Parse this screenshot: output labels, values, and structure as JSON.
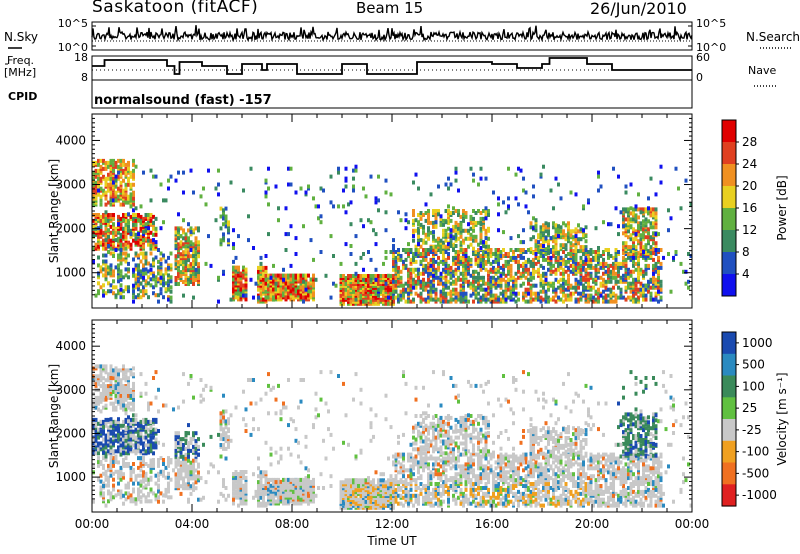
{
  "header": {
    "site": "Saskatoon (fitACF)",
    "beam": "Beam 15",
    "date": "26/Jun/2010"
  },
  "left_labels": {
    "nsky": "N.Sky",
    "freq": "Freq.",
    "freq_unit": "[MHz]",
    "cpid": "CPID"
  },
  "right_labels": {
    "nsearch": "N.Search",
    "nave": "Nave"
  },
  "cpid_text": "normalsound (fast) -157",
  "noise_panel": {
    "ticks_left": [
      "10^5",
      "10^0"
    ],
    "ticks_right": [
      "10^5",
      "10^0"
    ]
  },
  "freq_panel": {
    "ticks_left": [
      "18",
      "8"
    ],
    "ticks_right": [
      "60",
      "0"
    ]
  },
  "chart_data": [
    {
      "type": "heatmap",
      "name": "power",
      "ylabel": "Slant Range [km]",
      "xlabel": "Time UT",
      "ylim": [
        200,
        4600
      ],
      "yticks": [
        "1000",
        "2000",
        "3000",
        "4000"
      ],
      "xticks": [
        "00:00",
        "04:00",
        "08:00",
        "12:00",
        "16:00",
        "20:00",
        "00:00"
      ],
      "colorbar_label": "Power [dB]",
      "colorbar_ticks": [
        "4",
        "8",
        "12",
        "16",
        "20",
        "24",
        "28"
      ],
      "colors": [
        "#1010ee",
        "#2050c0",
        "#3a8a60",
        "#60b040",
        "#e8d020",
        "#f09020",
        "#e04020",
        "#e00000"
      ]
    },
    {
      "type": "heatmap",
      "name": "velocity",
      "ylabel": "Slant Range [km]",
      "xlabel": "Time UT",
      "ylim": [
        200,
        4600
      ],
      "yticks": [
        "1000",
        "2000",
        "3000",
        "4000"
      ],
      "xticks": [
        "00:00",
        "04:00",
        "08:00",
        "12:00",
        "16:00",
        "20:00",
        "00:00"
      ],
      "colorbar_label": "Velocity [m s⁻¹]",
      "colorbar_ticks": [
        "1000",
        "500",
        "100",
        "25",
        "-25",
        "-100",
        "-500",
        "-1000"
      ],
      "colors": [
        "#1a4ab0",
        "#2a8ac0",
        "#3a8a5a",
        "#60c040",
        "#c8c8c8",
        "#f0a020",
        "#f07020",
        "#e02020"
      ]
    }
  ]
}
